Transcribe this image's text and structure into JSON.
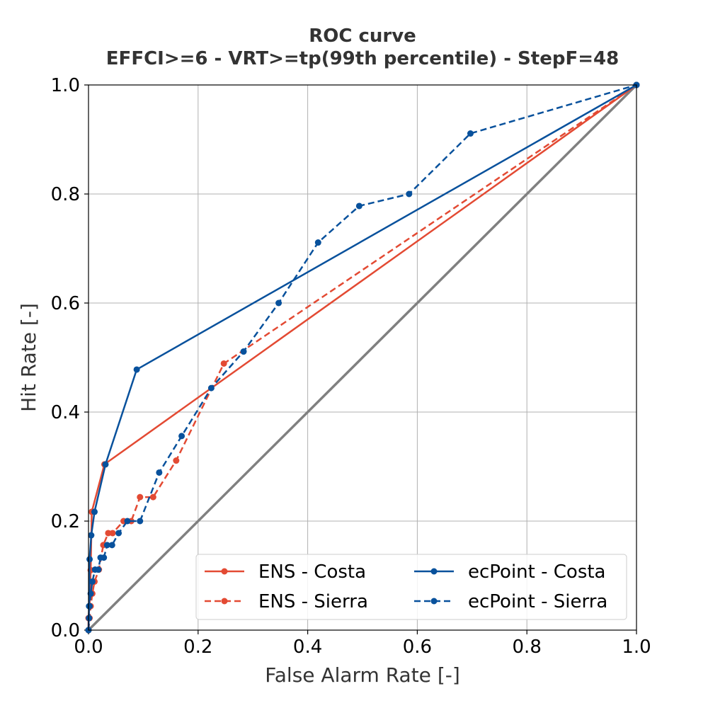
{
  "chart_data": {
    "type": "line",
    "title": "ROC curve",
    "subtitle": "EFFCI>=6 - VRT>=tp(99th percentile) - StepF=48",
    "xlabel": "False Alarm Rate [-]",
    "ylabel": "Hit Rate [-]",
    "xlim": [
      0,
      1
    ],
    "ylim": [
      0,
      1
    ],
    "xticks": [
      "0.0",
      "0.2",
      "0.4",
      "0.6",
      "0.8",
      "1.0"
    ],
    "yticks": [
      "0.0",
      "0.2",
      "0.4",
      "0.6",
      "0.8",
      "1.0"
    ],
    "grid": true,
    "legend_position": "lower-right",
    "reference_line": {
      "x": [
        0,
        1
      ],
      "y": [
        0,
        1
      ],
      "color": "#808080"
    },
    "series": [
      {
        "name": "ENS - Costa",
        "color": "#e34a33",
        "style": "solid",
        "x": [
          0,
          0.0,
          0.002,
          0.004,
          0.006,
          0.029,
          1.0
        ],
        "y": [
          0,
          0.022,
          0.044,
          0.11,
          0.217,
          0.304,
          1.0
        ]
      },
      {
        "name": "ENS - Sierra",
        "color": "#e34a33",
        "style": "dashed",
        "x": [
          0,
          0.002,
          0.004,
          0.007,
          0.011,
          0.019,
          0.027,
          0.036,
          0.044,
          0.064,
          0.078,
          0.094,
          0.118,
          0.16,
          0.247,
          1.0
        ],
        "y": [
          0,
          0.022,
          0.044,
          0.067,
          0.089,
          0.111,
          0.156,
          0.178,
          0.178,
          0.2,
          0.2,
          0.244,
          0.244,
          0.311,
          0.489,
          1.0
        ]
      },
      {
        "name": "ecPoint - Costa",
        "color": "#08519c",
        "style": "solid",
        "x": [
          0,
          0.001,
          0.002,
          0.005,
          0.011,
          0.031,
          0.088,
          1.0
        ],
        "y": [
          0,
          0.044,
          0.13,
          0.174,
          0.217,
          0.304,
          0.478,
          1.0
        ]
      },
      {
        "name": "ecPoint - Sierra",
        "color": "#08519c",
        "style": "dashed",
        "x": [
          0,
          0.001,
          0.002,
          0.004,
          0.007,
          0.012,
          0.018,
          0.022,
          0.028,
          0.034,
          0.043,
          0.055,
          0.071,
          0.094,
          0.129,
          0.17,
          0.224,
          0.283,
          0.347,
          0.419,
          0.494,
          0.585,
          0.697,
          1.0
        ],
        "y": [
          0,
          0.022,
          0.044,
          0.067,
          0.089,
          0.111,
          0.111,
          0.133,
          0.133,
          0.156,
          0.156,
          0.178,
          0.2,
          0.2,
          0.289,
          0.356,
          0.444,
          0.511,
          0.6,
          0.711,
          0.778,
          0.8,
          0.911,
          1.0
        ]
      }
    ]
  }
}
